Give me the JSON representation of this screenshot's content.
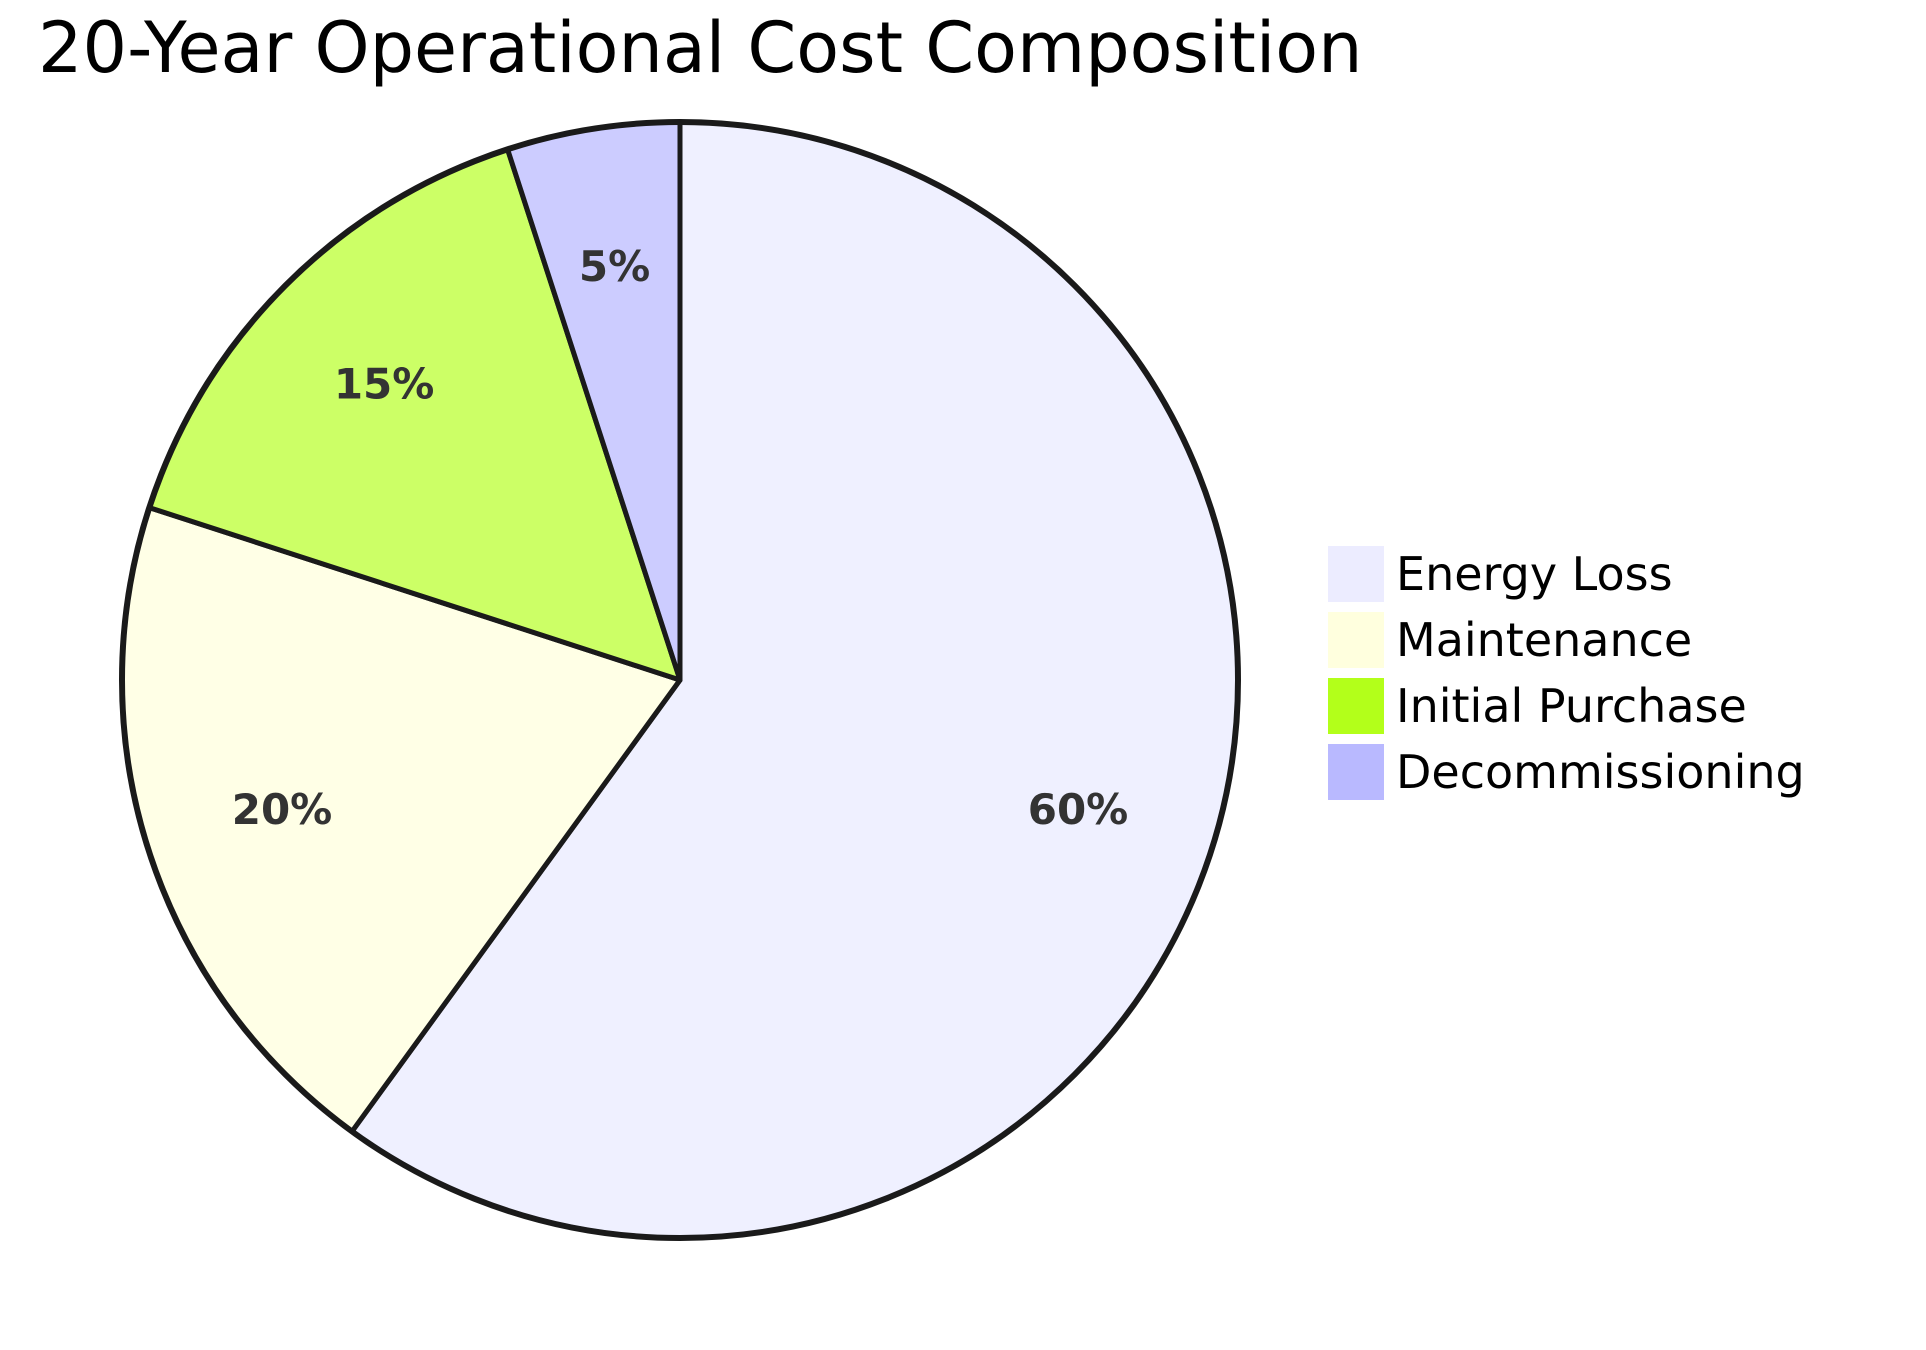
{
  "chart_data": {
    "type": "pie",
    "title": "20-Year Operational Cost Composition",
    "slices": [
      {
        "label": "Energy Loss",
        "value": 60,
        "display": "60%",
        "color": "#eff0ff"
      },
      {
        "label": "Maintenance",
        "value": 20,
        "display": "20%",
        "color": "#ffffe6"
      },
      {
        "label": "Initial Purchase",
        "value": 15,
        "display": "15%",
        "color": "#ccff66"
      },
      {
        "label": "Decommissioning",
        "value": 5,
        "display": "5%",
        "color": "#ccccff"
      }
    ],
    "legend": [
      {
        "label": "Energy Loss",
        "color": "#ececff"
      },
      {
        "label": "Maintenance",
        "color": "#ffffde"
      },
      {
        "label": "Initial Purchase",
        "color": "#b3ff1a"
      },
      {
        "label": "Decommissioning",
        "color": "#b9b9ff"
      }
    ],
    "legend_position": "right"
  }
}
